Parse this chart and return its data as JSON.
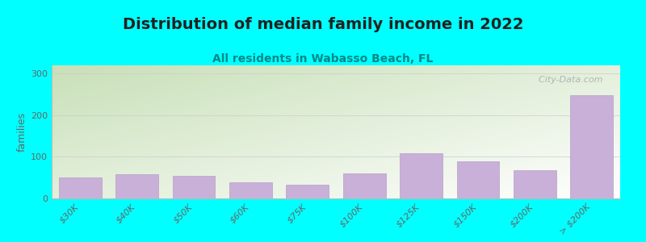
{
  "title": "Distribution of median family income in 2022",
  "subtitle": "All residents in Wabasso Beach, FL",
  "ylabel": "families",
  "background_color": "#00FFFF",
  "bar_color": "#c8b0d8",
  "bar_edge_color": "#b89ec8",
  "categories": [
    "$30K",
    "$40K",
    "$50K",
    "$60K",
    "$75K",
    "$100K",
    "$125K",
    "$150K",
    "$200K",
    "> $200K"
  ],
  "values": [
    50,
    58,
    55,
    38,
    33,
    60,
    108,
    90,
    68,
    248
  ],
  "ylim": [
    0,
    320
  ],
  "yticks": [
    0,
    100,
    200,
    300
  ],
  "grid_color": "#cccccc",
  "watermark": "  City-Data.com",
  "title_fontsize": 14,
  "subtitle_fontsize": 10,
  "ylabel_fontsize": 9,
  "tick_fontsize": 8,
  "title_color": "#222222",
  "subtitle_color": "#008888",
  "tick_color": "#666666",
  "gradient_top_left": "#c8e0b8",
  "gradient_bottom_right": "#ffffff"
}
